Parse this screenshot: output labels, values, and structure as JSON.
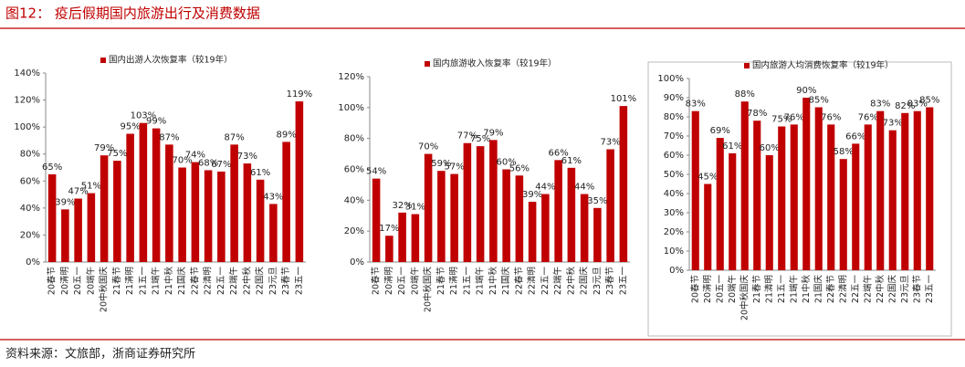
{
  "header": {
    "title": "图12：  疫后假期国内旅游出行及消费数据"
  },
  "footer": {
    "source": "资料来源：文旅部，浙商证券研究所"
  },
  "chart_data": [
    {
      "type": "bar",
      "categories": [
        "20春节",
        "20清明",
        "20五一",
        "20端午",
        "20中秋国庆",
        "21春节",
        "21清明",
        "21五一",
        "21端午",
        "21中秋",
        "21国庆",
        "22春节",
        "22清明",
        "22五一",
        "22端午",
        "22中秋",
        "22国庆",
        "23元旦",
        "23春节",
        "23五一"
      ],
      "series": [
        {
          "name": "国内出游人次恢复率（较19年）",
          "color": "#c00000",
          "values": [
            65,
            39,
            47,
            51,
            79,
            75,
            95,
            103,
            99,
            87,
            70,
            74,
            68,
            67,
            87,
            73,
            61,
            43,
            89,
            119
          ],
          "value_labels": [
            "65%",
            "39%",
            "47%",
            "51%",
            "79%",
            "75%",
            "95%",
            "103%",
            "99%",
            "87%",
            "70%",
            "74%",
            "68%",
            "67%",
            "87%",
            "73%",
            "61%",
            "43%",
            "89%",
            "119%"
          ]
        }
      ],
      "ylim": [
        0,
        140
      ],
      "yticks": [
        {
          "value": 0,
          "label": "0%"
        },
        {
          "value": 20,
          "label": "20%"
        },
        {
          "value": 40,
          "label": "40%"
        },
        {
          "value": 60,
          "label": "60%"
        },
        {
          "value": 80,
          "label": "80%"
        },
        {
          "value": 100,
          "label": "100%"
        },
        {
          "value": 120,
          "label": "120%"
        },
        {
          "value": 140,
          "label": "140%"
        }
      ]
    },
    {
      "type": "bar",
      "categories": [
        "20春节",
        "20清明",
        "20五一",
        "20端午",
        "20中秋国庆",
        "21春节",
        "21清明",
        "21五一",
        "21端午",
        "21中秋",
        "21国庆",
        "22春节",
        "22清明",
        "22五一",
        "22端午",
        "22中秋",
        "22国庆",
        "23元旦",
        "23春节",
        "23五一"
      ],
      "series": [
        {
          "name": "国内旅游收入恢复率（较19年）",
          "color": "#c00000",
          "values": [
            54,
            17,
            32,
            31,
            70,
            59,
            57,
            77,
            75,
            79,
            60,
            56,
            39,
            44,
            66,
            61,
            44,
            35,
            73,
            101
          ],
          "value_labels": [
            "54%",
            "17%",
            "32%",
            "31%",
            "70%",
            "59%",
            "57%",
            "77%",
            "75%",
            "79%",
            "60%",
            "56%",
            "39%",
            "44%",
            "66%",
            "61%",
            "44%",
            "35%",
            "73%",
            "101%"
          ]
        }
      ],
      "ylim": [
        0,
        120
      ],
      "yticks": [
        {
          "value": 0,
          "label": "0%"
        },
        {
          "value": 20,
          "label": "20%"
        },
        {
          "value": 40,
          "label": "40%"
        },
        {
          "value": 60,
          "label": "60%"
        },
        {
          "value": 80,
          "label": "80%"
        },
        {
          "value": 100,
          "label": "100%"
        },
        {
          "value": 120,
          "label": "120%"
        }
      ]
    },
    {
      "type": "bar",
      "categories": [
        "20春节",
        "20清明",
        "20五一",
        "20端午",
        "20中秋国庆",
        "21春节",
        "21清明",
        "21五一",
        "21端午",
        "21中秋",
        "21国庆",
        "22春节",
        "22清明",
        "22五一",
        "22端午",
        "22中秋",
        "22国庆",
        "23元旦",
        "23春节",
        "23五一"
      ],
      "series": [
        {
          "name": "国内旅游人均消费恢复率（较19年）",
          "color": "#c00000",
          "values": [
            83,
            45,
            69,
            61,
            88,
            78,
            60,
            75,
            76,
            90,
            85,
            76,
            58,
            66,
            76,
            83,
            73,
            82,
            83,
            85
          ],
          "value_labels": [
            "83%",
            "45%",
            "69%",
            "61%",
            "88%",
            "78%",
            "60%",
            "75%",
            "76%",
            "90%",
            "85%",
            "76%",
            "58%",
            "66%",
            "76%",
            "83%",
            "73%",
            "82%",
            "83%",
            "85%"
          ]
        }
      ],
      "ylim": [
        0,
        100
      ],
      "yticks": [
        {
          "value": 0,
          "label": "0%"
        },
        {
          "value": 10,
          "label": "10%"
        },
        {
          "value": 20,
          "label": "20%"
        },
        {
          "value": 30,
          "label": "30%"
        },
        {
          "value": 40,
          "label": "40%"
        },
        {
          "value": 50,
          "label": "50%"
        },
        {
          "value": 60,
          "label": "60%"
        },
        {
          "value": 70,
          "label": "70%"
        },
        {
          "value": 80,
          "label": "80%"
        },
        {
          "value": 90,
          "label": "90%"
        },
        {
          "value": 100,
          "label": "100%"
        }
      ]
    }
  ]
}
